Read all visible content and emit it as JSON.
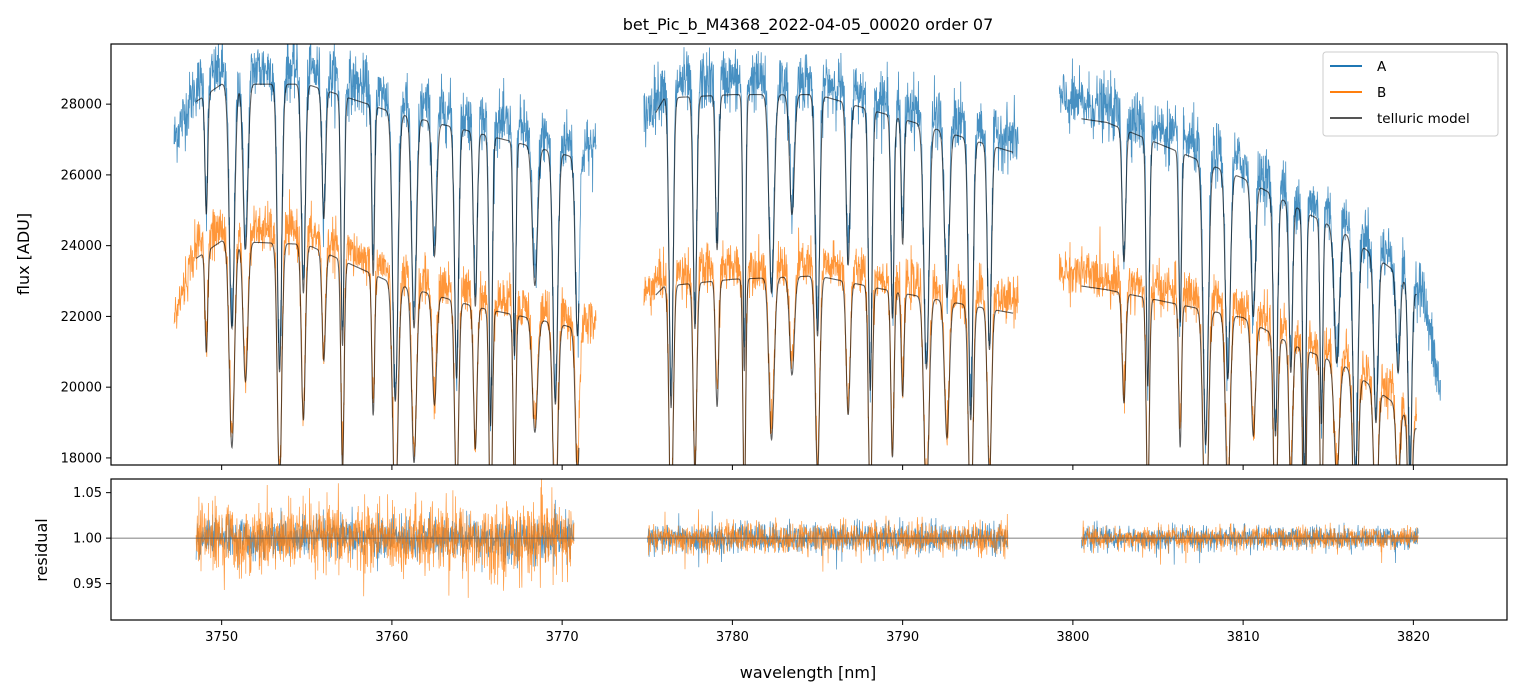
{
  "chart_data": [
    {
      "type": "line",
      "panel": "flux",
      "title": "bet_Pic_b_M4368_2022-04-05_00020  order 07",
      "xlabel": "",
      "ylabel": "flux [ADU]",
      "xlim": [
        3743.5,
        3825.5
      ],
      "ylim": [
        17800,
        29700
      ],
      "yticks": [
        18000,
        20000,
        22000,
        24000,
        26000,
        28000
      ],
      "xticks": [
        3750,
        3760,
        3770,
        3780,
        3790,
        3800,
        3810,
        3820
      ],
      "legend_position": "top-right",
      "series": [
        {
          "name": "A",
          "color": "#1f77b4",
          "segments": [
            [
              3747.2,
              3772.0
            ],
            [
              3774.8,
              3796.8
            ],
            [
              3799.2,
              3821.6
            ]
          ],
          "continuum": [
            [
              3747.2,
              27000
            ],
            [
              3748.5,
              28500
            ],
            [
              3750,
              29000
            ],
            [
              3755,
              29000
            ],
            [
              3760,
              28200
            ],
            [
              3765,
              27600
            ],
            [
              3770,
              27000
            ],
            [
              3772,
              26700
            ],
            [
              3774.8,
              27600
            ],
            [
              3776,
              28600
            ],
            [
              3780,
              28700
            ],
            [
              3785,
              28700
            ],
            [
              3790,
              28000
            ],
            [
              3796.8,
              27000
            ],
            [
              3799.2,
              28100
            ],
            [
              3802,
              27900
            ],
            [
              3806,
              27100
            ],
            [
              3810,
              26300
            ],
            [
              3813,
              25500
            ],
            [
              3816,
              24700
            ],
            [
              3819,
              23600
            ],
            [
              3820.5,
              22800
            ],
            [
              3821.6,
              19800
            ]
          ]
        },
        {
          "name": "B",
          "color": "#ff7f0e",
          "segments": [
            [
              3747.2,
              3772.0
            ],
            [
              3774.8,
              3796.8
            ],
            [
              3799.2,
              3820.2
            ]
          ],
          "continuum": [
            [
              3747.2,
              21900
            ],
            [
              3748.5,
              24000
            ],
            [
              3750,
              24500
            ],
            [
              3755,
              24400
            ],
            [
              3760,
              23300
            ],
            [
              3765,
              22600
            ],
            [
              3770,
              22100
            ],
            [
              3772,
              21800
            ],
            [
              3774.8,
              22600
            ],
            [
              3776,
              23200
            ],
            [
              3780,
              23400
            ],
            [
              3785,
              23500
            ],
            [
              3790,
              23000
            ],
            [
              3796.8,
              22400
            ],
            [
              3799.2,
              23300
            ],
            [
              3802,
              23100
            ],
            [
              3806,
              22700
            ],
            [
              3810,
              22300
            ],
            [
              3813,
              21500
            ],
            [
              3816,
              20900
            ],
            [
              3819,
              19800
            ],
            [
              3820.2,
              19100
            ]
          ]
        },
        {
          "name": "telluric model",
          "color": "#000000",
          "segments": [
            [
              3748.5,
              3771.0
            ],
            [
              3775.5,
              3796.5
            ],
            [
              3800.5,
              3820.2
            ]
          ]
        }
      ],
      "telluric_lines_nm": [
        3749.1,
        3750.6,
        3751.4,
        3753.4,
        3754.8,
        3756.0,
        3757.1,
        3758.9,
        3760.2,
        3761.3,
        3762.5,
        3763.8,
        3764.9,
        3765.8,
        3767.2,
        3768.4,
        3769.6,
        3770.9,
        3776.4,
        3777.8,
        3779.1,
        3780.7,
        3782.3,
        3783.5,
        3785.0,
        3786.8,
        3788.1,
        3789.4,
        3790.0,
        3791.4,
        3792.6,
        3794.0,
        3795.1,
        3803.0,
        3804.4,
        3806.3,
        3807.8,
        3809.1,
        3810.6,
        3811.9,
        3812.8,
        3813.6,
        3814.6,
        3815.5,
        3816.6,
        3817.8,
        3819.1,
        3819.8
      ]
    },
    {
      "type": "line",
      "panel": "residual",
      "xlabel": "wavelength [nm]",
      "ylabel": "residual",
      "xlim": [
        3743.5,
        3825.5
      ],
      "ylim": [
        0.91,
        1.065
      ],
      "yticks": [
        0.95,
        1.0,
        1.05
      ],
      "ytick_labels": [
        "0.95",
        "1.00",
        "1.05"
      ],
      "xticks": [
        3750,
        3760,
        3770,
        3780,
        3790,
        3800,
        3810,
        3820
      ],
      "reference_line": 1.0,
      "series": [
        {
          "name": "A",
          "color": "#1f77b4",
          "segments": [
            [
              3748.5,
              3770.7
            ],
            [
              3775.0,
              3796.2
            ],
            [
              3800.5,
              3820.3
            ]
          ],
          "noise_sigma": [
            0.02,
            0.015,
            0.011
          ]
        },
        {
          "name": "B",
          "color": "#ff7f0e",
          "segments": [
            [
              3748.5,
              3770.7
            ],
            [
              3775.0,
              3796.2
            ],
            [
              3800.5,
              3820.3
            ]
          ],
          "noise_sigma": [
            0.035,
            0.016,
            0.011
          ]
        }
      ]
    }
  ]
}
